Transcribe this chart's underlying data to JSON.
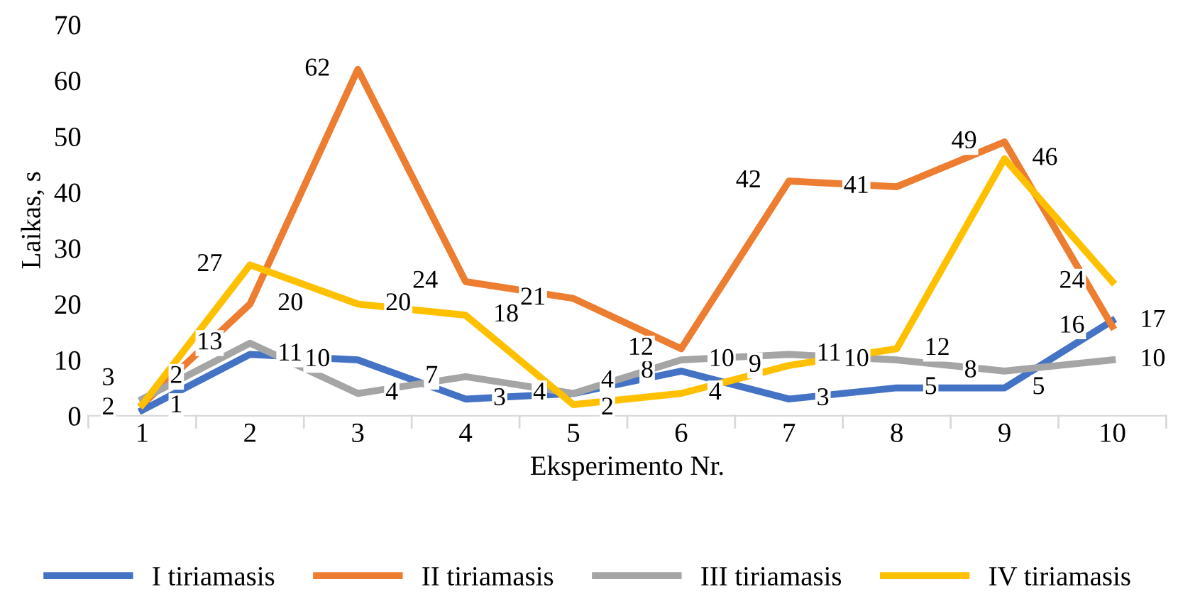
{
  "chart_data": {
    "type": "line",
    "xlabel": "Eksperimento Nr.",
    "ylabel": "Laikas, s",
    "categories": [
      "1",
      "2",
      "3",
      "4",
      "5",
      "6",
      "7",
      "8",
      "9",
      "10"
    ],
    "series": [
      {
        "name": "I tiriamasis",
        "color": "#4472c4",
        "values": [
          1,
          11,
          10,
          3,
          4,
          8,
          3,
          5,
          5,
          17
        ]
      },
      {
        "name": "II tiriamasis",
        "color": "#ed7d31",
        "values": [
          2,
          20,
          62,
          24,
          21,
          12,
          42,
          41,
          49,
          16
        ]
      },
      {
        "name": "III tiriamasis",
        "color": "#a5a5a5",
        "values": [
          3,
          13,
          4,
          7,
          4,
          10,
          11,
          10,
          8,
          10
        ]
      },
      {
        "name": "IV tiriamasis",
        "color": "#ffc000",
        "values": [
          2,
          27,
          20,
          18,
          2,
          4,
          9,
          12,
          46,
          24
        ]
      }
    ],
    "ylim": [
      0,
      70
    ],
    "yticks": [
      0,
      10,
      20,
      30,
      40,
      50,
      60,
      70
    ],
    "grid": false,
    "legend": "bottom",
    "data_labels": true,
    "marker": "none",
    "line_style": "solid"
  }
}
